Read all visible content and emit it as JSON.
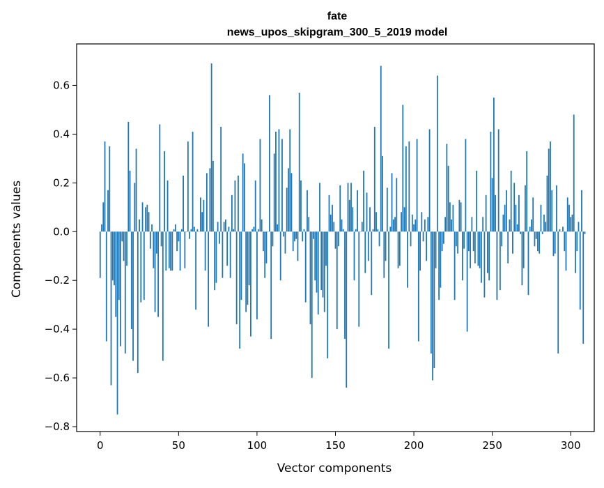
{
  "chart_data": {
    "type": "bar",
    "title_line1": "fate",
    "title_line2": "news_upos_skipgram_300_5_2019 model",
    "xlabel": "Vector components",
    "ylabel": "Components values",
    "xlim": [
      -15,
      315
    ],
    "ylim": [
      -0.82,
      0.77
    ],
    "xticks": [
      0,
      50,
      100,
      150,
      200,
      250,
      300
    ],
    "xtick_labels": [
      "0",
      "50",
      "100",
      "150",
      "200",
      "250",
      "300"
    ],
    "yticks": [
      -0.8,
      -0.6,
      -0.4,
      -0.2,
      0.0,
      0.2,
      0.4,
      0.6
    ],
    "ytick_labels": [
      "−0.8",
      "−0.6",
      "−0.4",
      "−0.2",
      "0.0",
      "0.2",
      "0.4",
      "0.6"
    ],
    "bar_color": "#1f77b4",
    "grid": false,
    "values": [
      -0.19,
      0.03,
      0.12,
      0.37,
      -0.45,
      0.17,
      0.35,
      -0.63,
      -0.2,
      -0.22,
      -0.35,
      -0.75,
      -0.28,
      -0.47,
      -0.04,
      -0.12,
      -0.5,
      -0.14,
      0.45,
      0.25,
      -0.4,
      -0.53,
      0.2,
      0.34,
      -0.58,
      0.05,
      -0.29,
      0.12,
      -0.28,
      0.1,
      0.11,
      0.08,
      -0.07,
      0.03,
      -0.15,
      -0.33,
      -0.09,
      -0.35,
      0.44,
      -0.06,
      -0.53,
      0.33,
      -0.16,
      0.21,
      -0.15,
      -0.16,
      -0.16,
      0.01,
      0.03,
      -0.08,
      -0.04,
      -0.16,
      0.01,
      0.23,
      -0.15,
      0.0,
      0.37,
      -0.03,
      0.01,
      0.41,
      0.02,
      -0.32,
      0.01,
      0.0,
      0.14,
      0.08,
      0.13,
      -0.16,
      0.24,
      -0.39,
      0.26,
      0.69,
      0.29,
      -0.24,
      -0.21,
      0.04,
      -0.05,
      0.43,
      -0.19,
      0.04,
      0.05,
      -0.14,
      0.02,
      -0.19,
      0.15,
      0.01,
      0.21,
      -0.38,
      0.23,
      -0.48,
      -0.28,
      0.32,
      0.28,
      -0.33,
      -0.3,
      -0.22,
      -0.43,
      0.01,
      0.02,
      0.21,
      -0.36,
      0.01,
      0.38,
      0.05,
      -0.08,
      -0.19,
      -0.13,
      0.0,
      0.56,
      -0.44,
      -0.06,
      0.32,
      0.41,
      0.03,
      0.42,
      -0.2,
      0.38,
      -0.02,
      -0.09,
      0.18,
      0.26,
      0.42,
      0.24,
      -0.08,
      -0.04,
      -0.03,
      -0.12,
      0.57,
      0.21,
      -0.04,
      0.01,
      -0.29,
      0.17,
      0.06,
      -0.38,
      -0.6,
      -0.03,
      -0.2,
      -0.25,
      -0.34,
      0.2,
      -0.24,
      -0.27,
      -0.33,
      -0.14,
      -0.52,
      0.15,
      0.07,
      0.11,
      0.04,
      -0.07,
      -0.4,
      -0.06,
      0.19,
      0.05,
      0.01,
      -0.44,
      -0.64,
      0.2,
      0.13,
      0.2,
      0.1,
      -0.2,
      0.01,
      0.17,
      -0.39,
      0.0,
      0.04,
      0.25,
      -0.17,
      0.16,
      -0.12,
      0.1,
      -0.26,
      0.01,
      0.43,
      0.08,
      0.01,
      -0.06,
      0.68,
      0.31,
      -0.19,
      -0.12,
      0.18,
      -0.48,
      0.02,
      0.24,
      0.05,
      0.06,
      0.22,
      -0.15,
      -0.14,
      0.08,
      0.52,
      0.1,
      0.35,
      -0.23,
      0.37,
      -0.06,
      0.07,
      0.03,
      0.05,
      0.38,
      -0.45,
      -0.16,
      0.08,
      -0.04,
      0.05,
      -0.12,
      0.06,
      0.42,
      -0.5,
      -0.61,
      -0.56,
      -0.15,
      0.64,
      -0.28,
      -0.23,
      -0.08,
      -0.05,
      0.06,
      0.36,
      0.27,
      0.12,
      0.05,
      0.11,
      -0.28,
      -0.06,
      -0.09,
      0.13,
      0.12,
      -0.2,
      -0.07,
      0.38,
      -0.41,
      -0.08,
      -0.15,
      0.06,
      -0.08,
      -0.13,
      0.25,
      -0.14,
      -0.15,
      -0.21,
      0.06,
      -0.27,
      0.15,
      -0.17,
      -0.2,
      0.41,
      0.22,
      0.55,
      0.15,
      -0.28,
      0.42,
      -0.24,
      -0.06,
      0.07,
      0.11,
      0.17,
      -0.13,
      0.05,
      0.25,
      -0.09,
      0.2,
      0.11,
      0.03,
      0.15,
      -0.01,
      -0.22,
      -0.15,
      0.19,
      0.33,
      -0.26,
      0.02,
      0.05,
      0.14,
      -0.06,
      -0.03,
      -0.08,
      -0.09,
      0.11,
      -0.01,
      0.07,
      0.04,
      0.23,
      0.34,
      0.37,
      0.17,
      -0.1,
      -0.09,
      0.19,
      -0.5,
      0.01,
      0.0,
      0.02,
      -0.08,
      -0.16,
      0.14,
      0.11,
      0.06,
      0.07,
      0.48,
      -0.17,
      -0.08,
      0.04,
      -0.32,
      0.17,
      -0.46,
      -0.01
    ]
  }
}
